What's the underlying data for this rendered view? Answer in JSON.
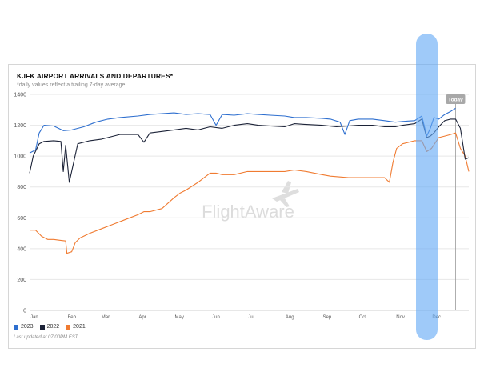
{
  "title": "KJFK AIRPORT ARRIVALS AND DEPARTURES*",
  "subtitle": "*daily values reflect a trailing 7-day average",
  "watermark": "FlightAware",
  "today_label": "Today",
  "last_updated": "Last updated at 07:00PM EST",
  "legend": [
    {
      "name": "2023",
      "color": "#2e6fcf"
    },
    {
      "name": "2022",
      "color": "#1c2338"
    },
    {
      "name": "2021",
      "color": "#f07b31"
    }
  ],
  "chart_data": {
    "type": "line",
    "title": "KJFK AIRPORT ARRIVALS AND DEPARTURES*",
    "subtitle": "*daily values reflect a trailing 7-day average",
    "xlabel": "",
    "ylabel": "",
    "ylim": [
      0,
      1400
    ],
    "yticks": [
      0,
      200,
      400,
      600,
      800,
      1000,
      1200,
      1400
    ],
    "xlim": [
      0,
      365
    ],
    "xticks": [
      {
        "label": "Jan",
        "x": 0
      },
      {
        "label": "Feb",
        "x": 31
      },
      {
        "label": "Mar",
        "x": 59
      },
      {
        "label": "Apr",
        "x": 90
      },
      {
        "label": "May",
        "x": 120
      },
      {
        "label": "Jun",
        "x": 151
      },
      {
        "label": "Jul",
        "x": 181
      },
      {
        "label": "Aug",
        "x": 212
      },
      {
        "label": "Sep",
        "x": 243
      },
      {
        "label": "Oct",
        "x": 273
      },
      {
        "label": "Nov",
        "x": 304
      },
      {
        "label": "Dec",
        "x": 334
      }
    ],
    "today_x": 354,
    "grid": true,
    "legend_position": "bottom-left",
    "series": [
      {
        "name": "2023",
        "color": "#2e6fcf",
        "x": [
          0,
          5,
          8,
          12,
          20,
          28,
          35,
          45,
          55,
          65,
          75,
          90,
          100,
          110,
          120,
          130,
          140,
          150,
          155,
          160,
          170,
          181,
          190,
          200,
          212,
          220,
          230,
          243,
          250,
          258,
          262,
          266,
          273,
          285,
          295,
          304,
          310,
          320,
          326,
          330,
          333,
          336,
          340,
          345,
          350,
          354
        ],
        "y": [
          1020,
          1040,
          1150,
          1200,
          1195,
          1165,
          1170,
          1190,
          1220,
          1240,
          1250,
          1260,
          1270,
          1275,
          1280,
          1270,
          1275,
          1270,
          1200,
          1270,
          1265,
          1275,
          1270,
          1265,
          1260,
          1250,
          1250,
          1245,
          1240,
          1220,
          1140,
          1230,
          1240,
          1240,
          1230,
          1220,
          1225,
          1230,
          1260,
          1130,
          1180,
          1250,
          1240,
          1270,
          1290,
          1310
        ]
      },
      {
        "name": "2022",
        "color": "#1c2338",
        "x": [
          0,
          3,
          8,
          12,
          20,
          26,
          28,
          30,
          33,
          40,
          50,
          60,
          75,
          90,
          95,
          100,
          110,
          120,
          130,
          140,
          150,
          160,
          170,
          181,
          190,
          200,
          212,
          220,
          230,
          243,
          255,
          265,
          273,
          285,
          295,
          304,
          310,
          320,
          326,
          330,
          333,
          336,
          340,
          345,
          350,
          354,
          358,
          362,
          365
        ],
        "y": [
          890,
          1000,
          1080,
          1095,
          1100,
          1095,
          900,
          1070,
          830,
          1080,
          1100,
          1110,
          1140,
          1140,
          1090,
          1150,
          1160,
          1170,
          1180,
          1170,
          1190,
          1180,
          1200,
          1210,
          1200,
          1195,
          1190,
          1210,
          1205,
          1200,
          1190,
          1195,
          1200,
          1200,
          1190,
          1190,
          1200,
          1210,
          1240,
          1120,
          1130,
          1150,
          1190,
          1230,
          1240,
          1240,
          1180,
          980,
          990
        ]
      },
      {
        "name": "2021",
        "color": "#f07b31",
        "x": [
          0,
          5,
          10,
          15,
          20,
          25,
          30,
          31,
          35,
          38,
          42,
          50,
          60,
          70,
          80,
          90,
          95,
          100,
          110,
          120,
          125,
          130,
          140,
          150,
          155,
          160,
          170,
          181,
          190,
          200,
          212,
          220,
          230,
          243,
          250,
          265,
          273,
          285,
          295,
          299,
          302,
          305,
          310,
          315,
          320,
          326,
          330,
          334,
          340,
          345,
          350,
          354,
          358,
          362,
          365
        ],
        "y": [
          520,
          520,
          480,
          460,
          460,
          455,
          450,
          370,
          380,
          440,
          470,
          500,
          530,
          560,
          590,
          620,
          640,
          640,
          660,
          730,
          760,
          780,
          830,
          890,
          890,
          880,
          880,
          900,
          900,
          900,
          900,
          910,
          900,
          880,
          870,
          860,
          860,
          860,
          860,
          830,
          960,
          1050,
          1080,
          1090,
          1100,
          1100,
          1030,
          1050,
          1120,
          1130,
          1140,
          1150,
          1050,
          1000,
          900
        ]
      }
    ]
  }
}
